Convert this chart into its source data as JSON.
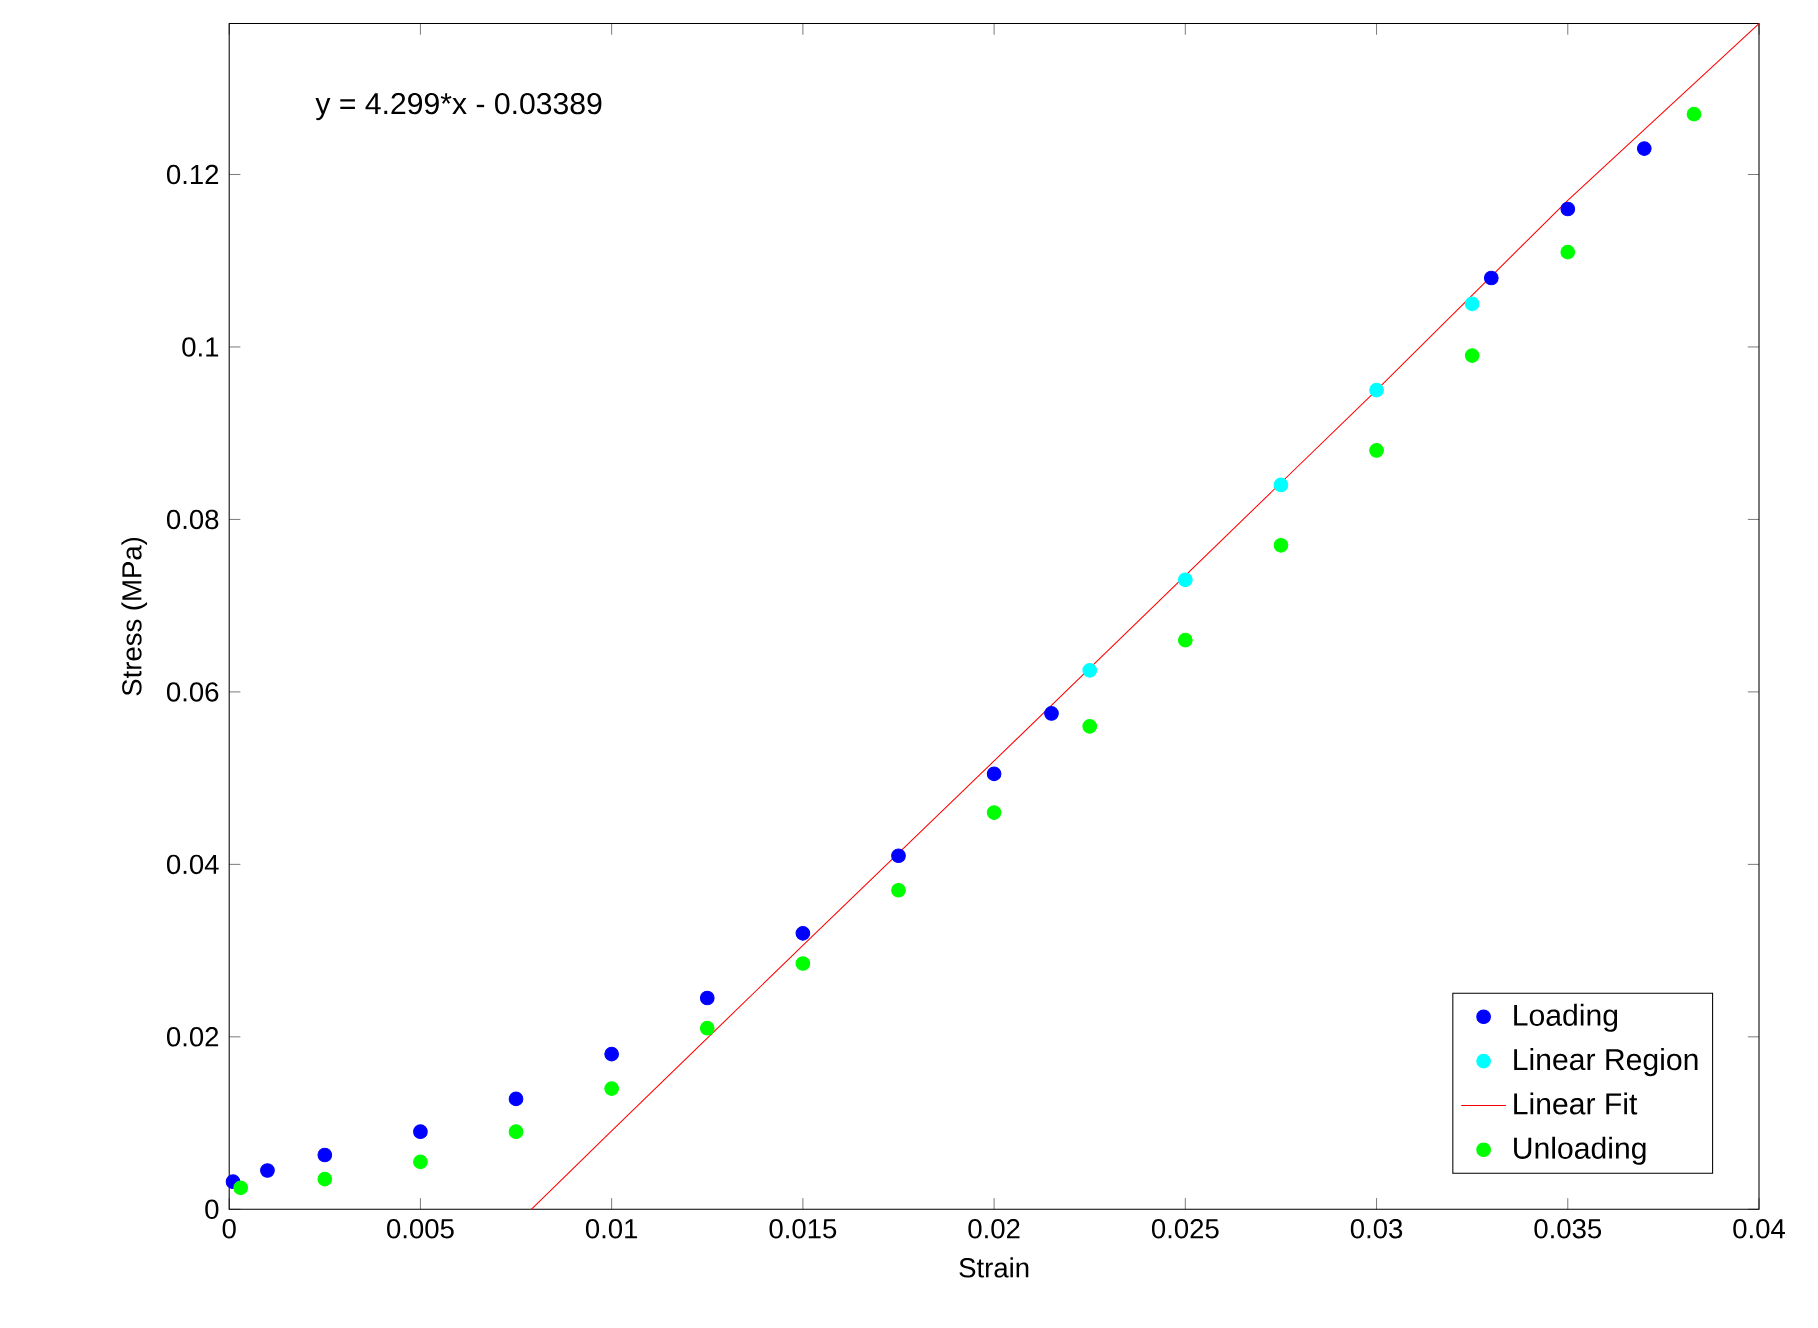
{
  "chart_data": {
    "type": "scatter",
    "xlabel": "Strain",
    "ylabel": "Stress (MPa)",
    "xlim": [
      0,
      0.04
    ],
    "ylim": [
      0,
      0.1375
    ],
    "xticks": [
      0,
      0.005,
      0.01,
      0.015,
      0.02,
      0.025,
      0.03,
      0.035,
      0.04
    ],
    "yticks": [
      0,
      0.02,
      0.04,
      0.06,
      0.08,
      0.1,
      0.12
    ],
    "grid": false,
    "legend": "bottom right",
    "marker": "circle",
    "annotations": [
      "y = 4.299*x - 0.03389"
    ],
    "series": [
      {
        "name": "Loading",
        "color": "#0000ff",
        "x": [
          0.0001,
          0.001,
          0.0025,
          0.005,
          0.0075,
          0.01,
          0.0125,
          0.015,
          0.0175,
          0.02,
          0.0215,
          0.0275,
          0.03,
          0.033,
          0.035,
          0.037
        ],
        "values": [
          0.0032,
          0.0045,
          0.0063,
          0.009,
          0.0128,
          0.018,
          0.0245,
          0.032,
          0.041,
          0.0505,
          0.0575,
          null,
          null,
          0.108,
          0.116,
          0.123
        ]
      },
      {
        "name": "Linear Region",
        "color": "#00ffff",
        "x": [
          0.0225,
          0.025,
          0.0275,
          0.03,
          0.0325
        ],
        "values": [
          0.0625,
          0.073,
          0.084,
          0.095,
          0.105
        ]
      },
      {
        "name": "Linear Fit",
        "type": "line",
        "marker": "none",
        "color": "#ff0000",
        "x": [
          0.0079,
          0.01,
          0.015,
          0.02,
          0.03,
          0.035,
          0.04
        ],
        "values": [
          0,
          0.0091,
          0.0306,
          0.052,
          0.095,
          0.117,
          0.1375
        ]
      },
      {
        "name": "Unloading",
        "color": "#00ff00",
        "x": [
          0.0383,
          0.035,
          0.0325,
          0.03,
          0.0275,
          0.025,
          0.0225,
          0.02,
          0.0175,
          0.015,
          0.0125,
          0.01,
          0.0075,
          0.005,
          0.0025,
          0.0003
        ],
        "values": [
          0.127,
          0.111,
          0.099,
          0.088,
          0.077,
          0.066,
          0.056,
          0.046,
          0.037,
          0.0285,
          0.021,
          0.014,
          0.009,
          0.0055,
          0.0035,
          0.0025
        ]
      }
    ]
  }
}
